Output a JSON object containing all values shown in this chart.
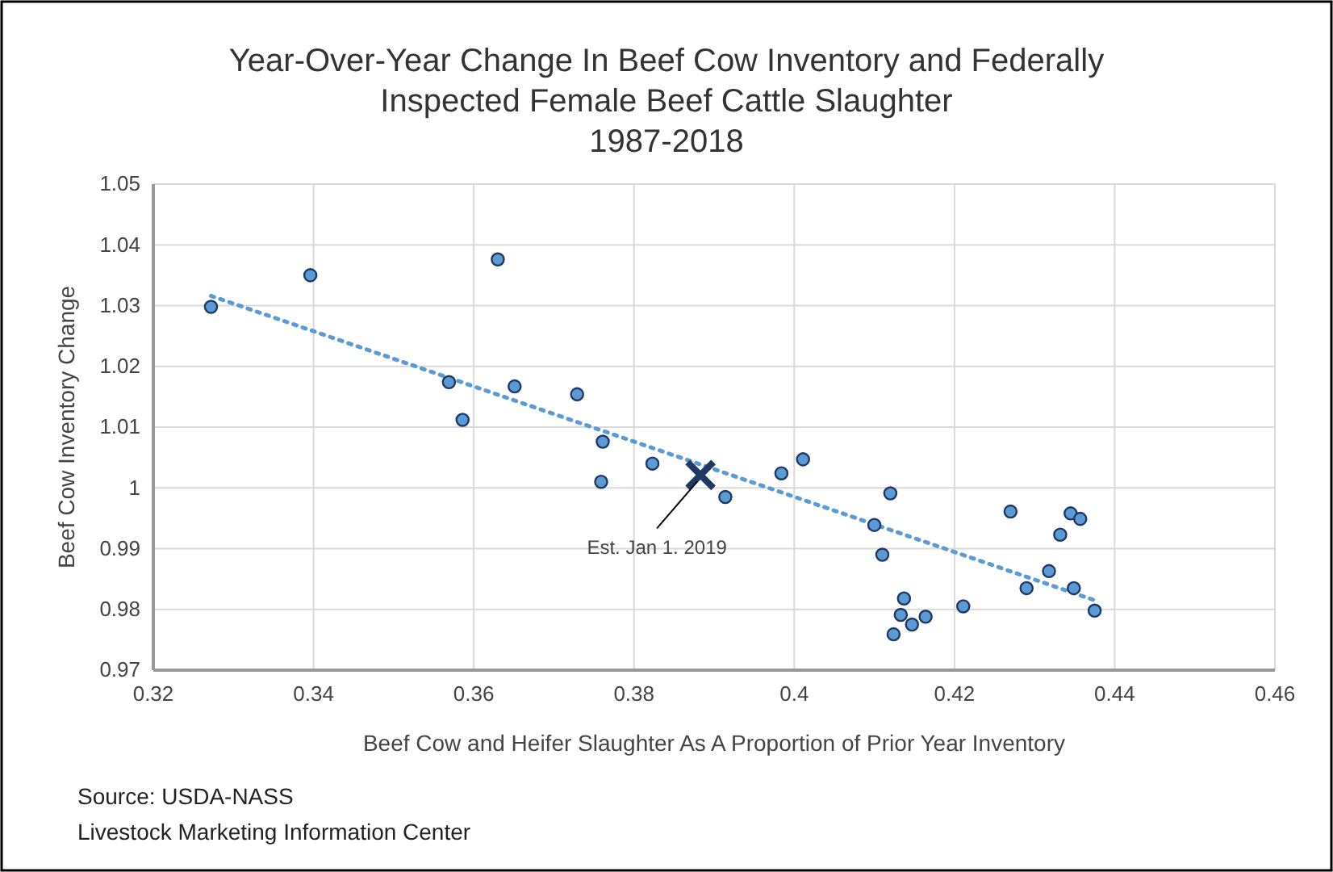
{
  "chart_data": {
    "type": "scatter",
    "title": "Year-Over-Year Change In Beef Cow Inventory and Federally\nInspected Female Beef Cattle Slaughter\n1987-2018",
    "xlabel": "Beef Cow and Heifer Slaughter As A Proportion of Prior Year Inventory",
    "ylabel": "Beef Cow Inventory Change",
    "xlim": [
      0.32,
      0.46
    ],
    "xticks": [
      0.32,
      0.34,
      0.36,
      0.38,
      0.4,
      0.42,
      0.44,
      0.46
    ],
    "ylim": [
      0.97,
      1.05
    ],
    "yticks": [
      0.97,
      0.98,
      0.99,
      1,
      1.01,
      1.02,
      1.03,
      1.04,
      1.05
    ],
    "grid": true,
    "series": [
      {
        "type": "scatter",
        "marker": "circle",
        "color": "#5b9bd5",
        "x": [
          0.3272,
          0.3396,
          0.363,
          0.3569,
          0.3586,
          0.3651,
          0.3729,
          0.3761,
          0.3759,
          0.3823,
          0.3914,
          0.3984,
          0.4011,
          0.412,
          0.41,
          0.411,
          0.4137,
          0.4133,
          0.4147,
          0.4164,
          0.4124,
          0.4211,
          0.427,
          0.429,
          0.4318,
          0.4332,
          0.4345,
          0.4357,
          0.4349,
          0.4375
        ],
        "values": [
          1.0298,
          1.035,
          1.0376,
          1.0174,
          1.0112,
          1.0167,
          1.0154,
          1.0076,
          1.001,
          1.004,
          0.9985,
          1.0024,
          1.0047,
          0.9991,
          0.9939,
          0.989,
          0.9818,
          0.9791,
          0.9775,
          0.9788,
          0.9759,
          0.9805,
          0.9961,
          0.9835,
          0.9863,
          0.9923,
          0.9958,
          0.9949,
          0.9835,
          0.9798
        ]
      },
      {
        "type": "line",
        "marker": "none",
        "line_style": "dotted",
        "color": "#5b9bd5",
        "x": [
          0.3272,
          0.4375
        ],
        "values": [
          1.0316,
          0.9815
        ]
      },
      {
        "type": "scatter",
        "marker": "cross",
        "color": "#1f3864",
        "x": [
          0.3883
        ],
        "values": [
          1.0021
        ]
      }
    ],
    "annotations": [
      {
        "text": "Est. Jan 1. 2019",
        "x": 0.3883,
        "y": 1.0021
      },
      "Source: USDA-NASS\nLivestock Marketing Information Center"
    ]
  }
}
